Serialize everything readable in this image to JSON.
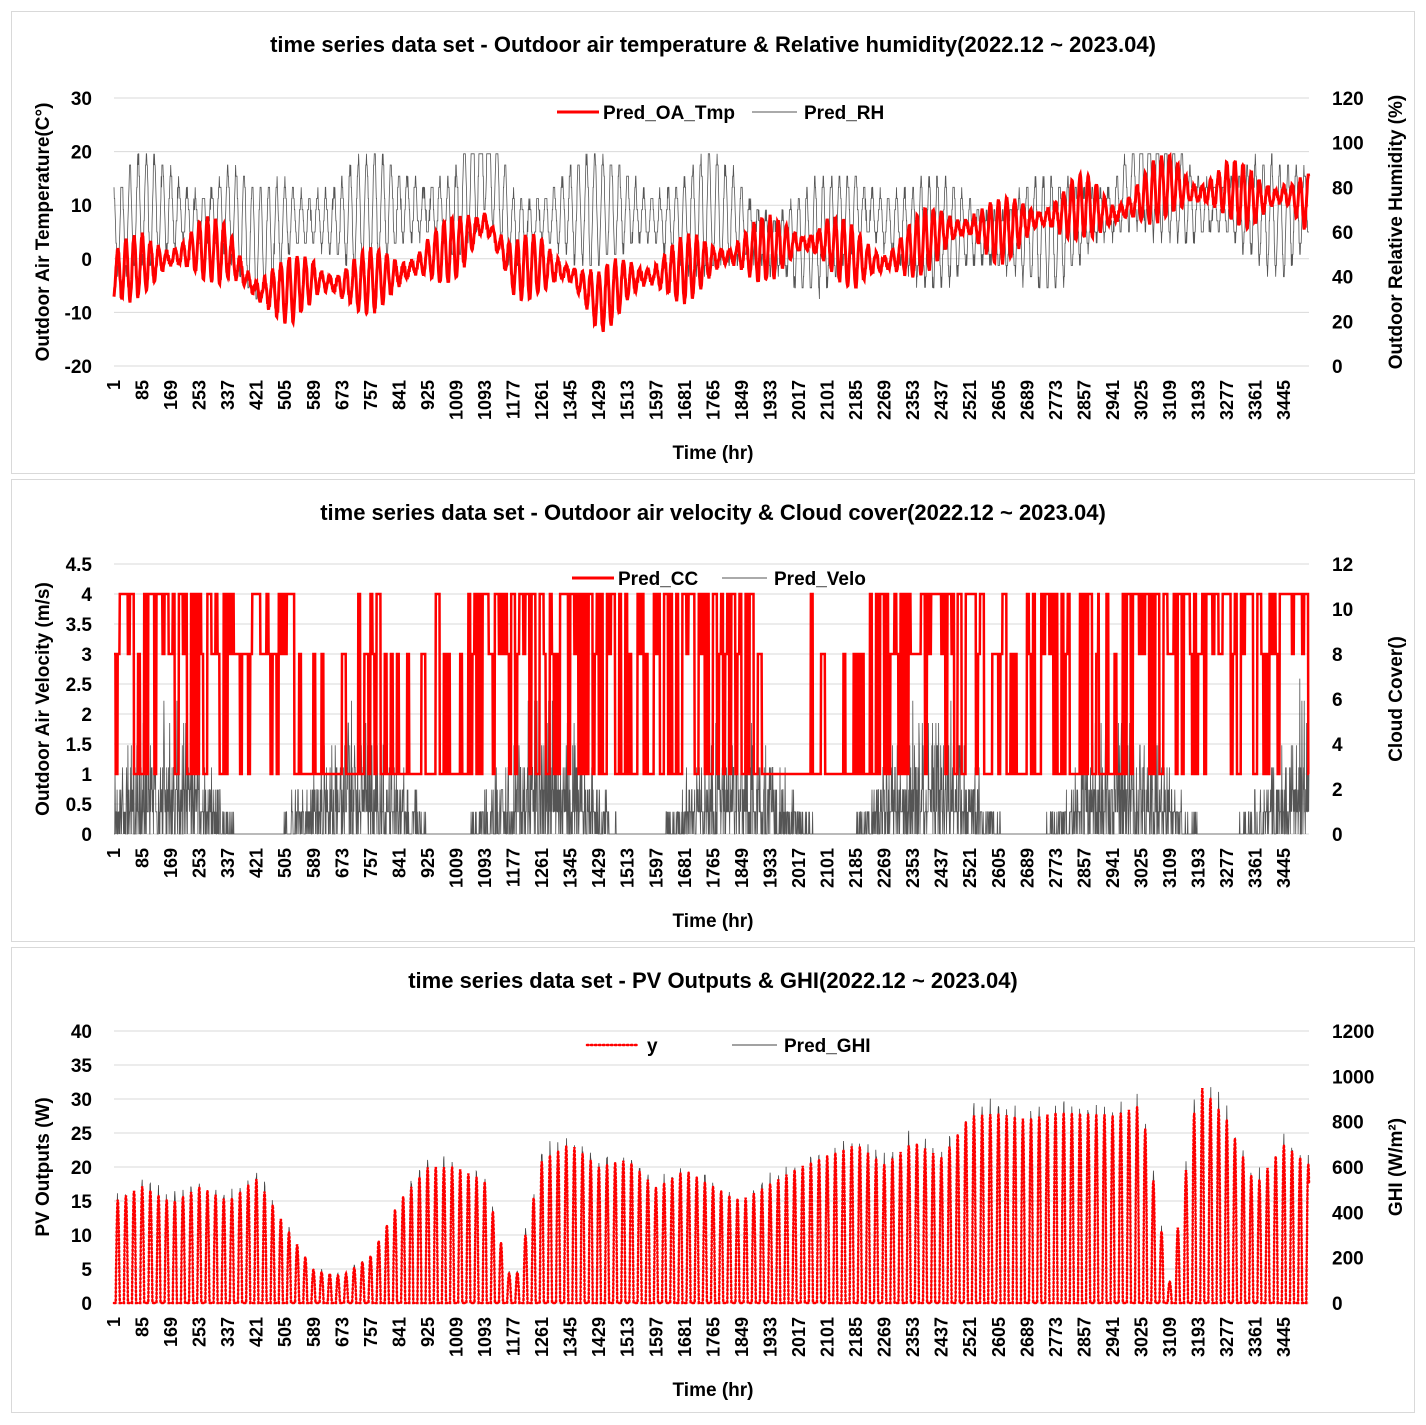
{
  "chart_data": [
    {
      "type": "line",
      "title": "time series data set - Outdoor air temperature & Relative humidity(2022.12  ~ 2023.04)",
      "xlabel": "Time (hr)",
      "ylabel": "Outdoor Air Temperature(C°)",
      "y2label": "Outdoor Relative Humidity (%)",
      "ylim": [
        -20,
        30
      ],
      "yticks": [
        -20,
        -10,
        0,
        10,
        20,
        30
      ],
      "y2lim": [
        0,
        120
      ],
      "y2ticks": [
        0,
        20,
        40,
        60,
        80,
        100,
        120
      ],
      "legend_position": "top-center",
      "series": [
        {
          "name": "Pred_OA_Tmp",
          "color": "#ff0000",
          "axis": "left",
          "style": "thick",
          "segment_mean": [
            -3,
            -1,
            0,
            2,
            1,
            -6,
            -6,
            -4,
            -5,
            -4,
            -3,
            0,
            2,
            7,
            -2,
            -1,
            -3,
            -8,
            -4,
            -3,
            -2,
            0,
            1,
            2,
            3,
            3,
            0,
            -1,
            2,
            5,
            6,
            5,
            7,
            8,
            10,
            8,
            11,
            14,
            12,
            13,
            11,
            12,
            10
          ],
          "diurnal_amplitude": 6
        },
        {
          "name": "Pred_RH",
          "color": "#555555",
          "axis": "right",
          "style": "thin",
          "segment_mean": [
            60,
            70,
            70,
            65,
            70,
            55,
            65,
            65,
            65,
            70,
            70,
            70,
            68,
            95,
            60,
            65,
            70,
            70,
            70,
            65,
            65,
            70,
            65,
            55,
            55,
            60,
            70,
            65,
            60,
            60,
            60,
            55,
            60,
            60,
            65,
            70,
            85,
            80,
            70,
            70,
            70,
            65,
            75
          ],
          "diurnal_amplitude": 25
        }
      ]
    },
    {
      "type": "line",
      "title": "time series data set - Outdoor air velocity & Cloud cover(2022.12  ~ 2023.04)",
      "xlabel": "Time (hr)",
      "ylabel": "Outdoor Air Velocity (m/s)",
      "y2label": "Cloud Cover()",
      "ylim": [
        0,
        4.5
      ],
      "yticks": [
        0,
        0.5,
        1,
        1.5,
        2,
        2.5,
        3,
        3.5,
        4,
        4.5
      ],
      "y2lim": [
        0,
        12
      ],
      "y2ticks": [
        0,
        2,
        4,
        6,
        8,
        10,
        12
      ],
      "legend_position": "top-center",
      "series": [
        {
          "name": "Pred_CC",
          "color": "#ff0000",
          "axis": "left",
          "style": "thick",
          "levels": [
            1,
            3,
            4
          ],
          "segment_cloudiness": [
            0.8,
            0.8,
            0.7,
            0.7,
            0.5,
            0.6,
            0.6,
            0.1,
            0.2,
            0.5,
            0.4,
            0.5,
            0.3,
            0.9,
            0.7,
            0.8,
            0.7,
            0.5,
            0.6,
            0.6,
            0.4,
            0.6,
            0.7,
            0.2,
            0.3,
            0.4,
            0.1,
            0.7,
            0.8,
            0.8,
            0.7,
            0.7,
            0.6,
            0.6,
            0.6,
            0.4,
            0.9,
            0.7,
            0.8,
            0.8,
            0.8,
            0.8,
            0.8
          ]
        },
        {
          "name": "Pred_Velo",
          "color": "#555555",
          "axis": "left",
          "style": "thin",
          "max": 2.6
        }
      ]
    },
    {
      "type": "line",
      "title": "time series data set - PV Outputs & GHI(2022.12  ~ 2023.04)",
      "xlabel": "Time (hr)",
      "ylabel": "PV Outputs (W)",
      "y2label": "GHI (W/m²)",
      "ylim": [
        0,
        40
      ],
      "yticks": [
        0,
        5,
        10,
        15,
        20,
        25,
        30,
        35,
        40
      ],
      "y2lim": [
        0,
        1200
      ],
      "y2ticks": [
        0,
        200,
        400,
        600,
        800,
        1000,
        1200
      ],
      "legend_position": "top-center",
      "series": [
        {
          "name": "y",
          "color": "#ff0000",
          "axis": "left",
          "style": "dotted",
          "segment_daily_peak": [
            20,
            22,
            18,
            20,
            17,
            20,
            12,
            5,
            4,
            7,
            15,
            20,
            20,
            18,
            2,
            22,
            25,
            22,
            24,
            20,
            24,
            22,
            20,
            22,
            24,
            25,
            26,
            22,
            25,
            22,
            28,
            28,
            27,
            28,
            28,
            28,
            30,
            3,
            35,
            30,
            20,
            28,
            25
          ]
        },
        {
          "name": "Pred_GHI",
          "color": "#444444",
          "axis": "right",
          "style": "thin"
        }
      ]
    }
  ],
  "xticks": [
    1,
    85,
    169,
    253,
    337,
    421,
    505,
    589,
    673,
    757,
    841,
    925,
    1009,
    1093,
    1177,
    1261,
    1345,
    1429,
    1513,
    1597,
    1681,
    1765,
    1849,
    1933,
    2017,
    2101,
    2185,
    2269,
    2353,
    2437,
    2521,
    2605,
    2689,
    2773,
    2857,
    2941,
    3025,
    3109,
    3193,
    3277,
    3361,
    3445
  ],
  "hours": 3518
}
